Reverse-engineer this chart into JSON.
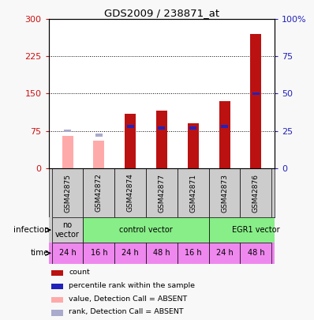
{
  "title": "GDS2009 / 238871_at",
  "samples": [
    "GSM42875",
    "GSM42872",
    "GSM42874",
    "GSM42877",
    "GSM42871",
    "GSM42873",
    "GSM42876"
  ],
  "count_values": [
    65,
    55,
    110,
    115,
    90,
    135,
    270
  ],
  "rank_values": [
    25,
    22,
    28,
    27,
    27,
    28,
    50
  ],
  "absent": [
    true,
    true,
    false,
    false,
    false,
    false,
    false
  ],
  "ylim_left": [
    0,
    300
  ],
  "ylim_right": [
    0,
    100
  ],
  "yticks_left": [
    0,
    75,
    150,
    225,
    300
  ],
  "yticks_right": [
    0,
    25,
    50,
    75,
    100
  ],
  "yticklabels_right": [
    "0",
    "25",
    "50",
    "75",
    "100%"
  ],
  "time_labels": [
    "24 h",
    "16 h",
    "24 h",
    "48 h",
    "16 h",
    "24 h",
    "48 h"
  ],
  "time_color": "#ee88ee",
  "color_count_present": "#bb1111",
  "color_count_absent": "#ffaaaa",
  "color_rank_present": "#2222bb",
  "color_rank_absent": "#aaaacc",
  "legend_items": [
    {
      "label": "count",
      "color": "#bb1111"
    },
    {
      "label": "percentile rank within the sample",
      "color": "#2222bb"
    },
    {
      "label": "value, Detection Call = ABSENT",
      "color": "#ffaaaa"
    },
    {
      "label": "rank, Detection Call = ABSENT",
      "color": "#aaaacc"
    }
  ],
  "bar_width": 0.35,
  "background_color": "#f8f8f8",
  "plot_bg": "white",
  "sample_area_color": "#cccccc",
  "no_vector_color": "#cccccc",
  "vector_color": "#88ee88"
}
